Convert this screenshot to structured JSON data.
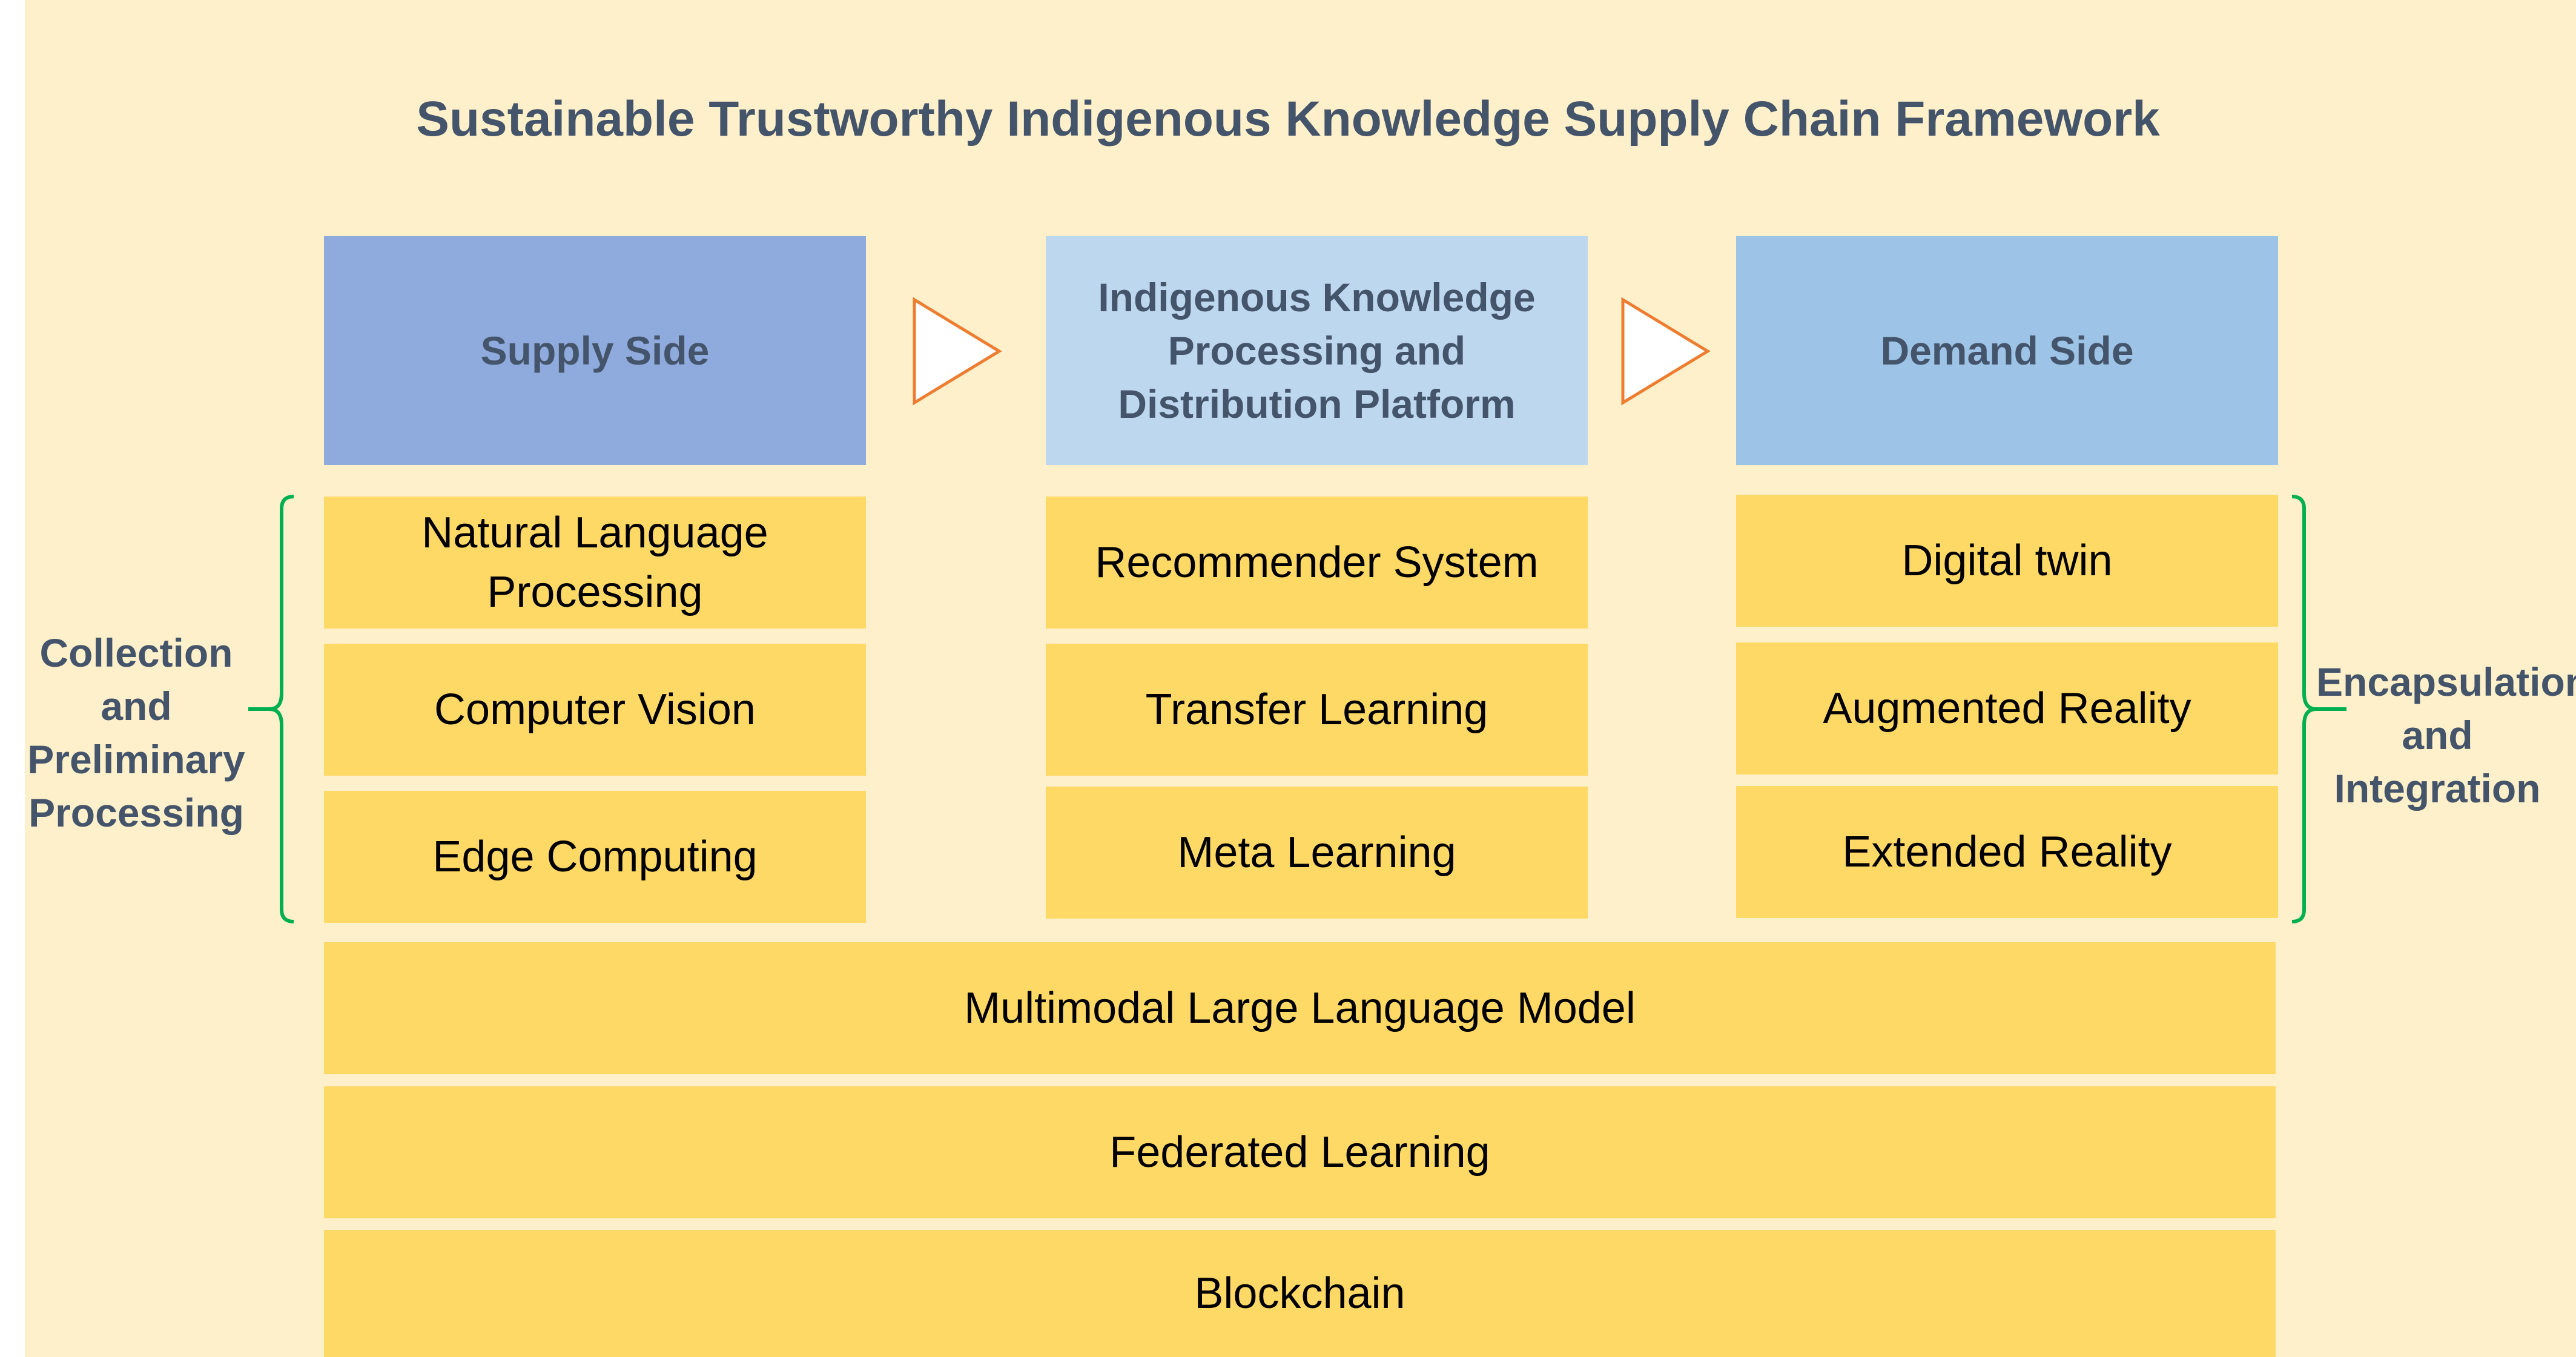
{
  "title": "Sustainable Trustworthy Indigenous Knowledge Supply Chain Framework",
  "headers": {
    "supply": "Supply Side",
    "platform": "Indigenous Knowledge Processing and Distribution Platform",
    "demand": "Demand Side"
  },
  "supply_items": [
    "Natural Language Processing",
    "Computer Vision",
    "Edge Computing"
  ],
  "platform_items": [
    "Recommender System",
    "Transfer Learning",
    "Meta Learning"
  ],
  "demand_items": [
    "Digital twin",
    "Augmented Reality",
    "Extended Reality"
  ],
  "foundation_layers": [
    "Multimodal Large Language Model",
    "Federated Learning",
    "Blockchain"
  ],
  "side_labels": {
    "left": "Collection and Preliminary Processing",
    "right": "Encapsulation and Integration"
  },
  "colors": {
    "background": "#fef0ca",
    "title_text": "#44546a",
    "supply_header": "#8faadc",
    "platform_header": "#bdd7ee",
    "demand_header": "#9dc3e6",
    "layer_box": "#ffd966",
    "arrow": "#ed7d31",
    "bracket": "#00b050"
  },
  "icons": {
    "flow_arrow": "triangle-arrow-right-icon",
    "group_bracket": "curly-bracket-icon"
  }
}
